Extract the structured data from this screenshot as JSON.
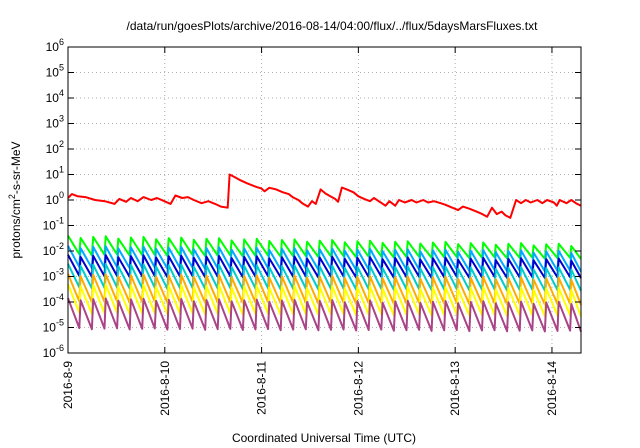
{
  "chart_data": {
    "type": "line",
    "title": "/data/run/goesPlots/archive/2016-08-14/04:00/flux/../flux/5daysMarsFluxes.txt",
    "xlabel": "Coordinated Universal Time (UTC)",
    "ylabel": "protons/cm²-s-sr-MeV",
    "y_scale": "log",
    "ylim": [
      1e-06,
      1000000.0
    ],
    "xlim": [
      0.0,
      5.3
    ],
    "x_units": "days since 2016-8-9 00:00 UTC",
    "x_ticks": [
      {
        "value": 0,
        "label": "2016-8-9"
      },
      {
        "value": 1,
        "label": "2016-8-10"
      },
      {
        "value": 2,
        "label": "2016-8-11"
      },
      {
        "value": 3,
        "label": "2016-8-12"
      },
      {
        "value": 4,
        "label": "2016-8-13"
      },
      {
        "value": 5,
        "label": "2016-8-14"
      }
    ],
    "y_ticks": [
      {
        "exp": -6
      },
      {
        "exp": -5
      },
      {
        "exp": -4
      },
      {
        "exp": -3
      },
      {
        "exp": -2
      },
      {
        "exp": -1
      },
      {
        "exp": 0
      },
      {
        "exp": 1
      },
      {
        "exp": 2
      },
      {
        "exp": 3
      },
      {
        "exp": 4
      },
      {
        "exp": 5
      },
      {
        "exp": 6
      }
    ],
    "tick_base": "10",
    "grid": true,
    "legend": "none",
    "series": [
      {
        "color": "#ff0000",
        "points": [
          [
            0.0,
            1.2
          ],
          [
            0.04,
            1.7
          ],
          [
            0.1,
            1.4
          ],
          [
            0.18,
            1.3
          ],
          [
            0.28,
            1.0
          ],
          [
            0.38,
            0.9
          ],
          [
            0.48,
            0.7
          ],
          [
            0.53,
            1.1
          ],
          [
            0.6,
            0.85
          ],
          [
            0.65,
            1.2
          ],
          [
            0.72,
            0.9
          ],
          [
            0.78,
            1.3
          ],
          [
            0.86,
            1.0
          ],
          [
            0.92,
            1.2
          ],
          [
            0.98,
            0.95
          ],
          [
            1.06,
            0.7
          ],
          [
            1.11,
            1.5
          ],
          [
            1.18,
            1.2
          ],
          [
            1.24,
            1.3
          ],
          [
            1.3,
            1.0
          ],
          [
            1.38,
            0.75
          ],
          [
            1.45,
            0.9
          ],
          [
            1.52,
            0.7
          ],
          [
            1.58,
            0.55
          ],
          [
            1.65,
            0.5
          ],
          [
            1.67,
            10.0
          ],
          [
            1.72,
            8.0
          ],
          [
            1.78,
            6.0
          ],
          [
            1.85,
            4.5
          ],
          [
            1.9,
            3.8
          ],
          [
            1.95,
            3.2
          ],
          [
            2.0,
            2.8
          ],
          [
            2.03,
            2.2
          ],
          [
            2.08,
            3.0
          ],
          [
            2.15,
            2.6
          ],
          [
            2.22,
            2.0
          ],
          [
            2.28,
            1.7
          ],
          [
            2.32,
            1.3
          ],
          [
            2.38,
            1.0
          ],
          [
            2.42,
            0.75
          ],
          [
            2.48,
            0.55
          ],
          [
            2.52,
            0.9
          ],
          [
            2.56,
            0.7
          ],
          [
            2.61,
            2.6
          ],
          [
            2.66,
            1.8
          ],
          [
            2.71,
            1.4
          ],
          [
            2.76,
            1.1
          ],
          [
            2.79,
            0.85
          ],
          [
            2.83,
            3.1
          ],
          [
            2.88,
            2.6
          ],
          [
            2.95,
            2.0
          ],
          [
            3.0,
            1.4
          ],
          [
            3.06,
            1.1
          ],
          [
            3.12,
            0.9
          ],
          [
            3.16,
            1.2
          ],
          [
            3.22,
            0.85
          ],
          [
            3.28,
            0.6
          ],
          [
            3.32,
            0.9
          ],
          [
            3.38,
            0.6
          ],
          [
            3.42,
            1.0
          ],
          [
            3.48,
            0.8
          ],
          [
            3.55,
            1.0
          ],
          [
            3.6,
            0.8
          ],
          [
            3.67,
            1.0
          ],
          [
            3.72,
            0.8
          ],
          [
            3.78,
            0.9
          ],
          [
            3.85,
            0.75
          ],
          [
            3.9,
            0.65
          ],
          [
            3.97,
            0.5
          ],
          [
            4.03,
            0.4
          ],
          [
            4.08,
            0.55
          ],
          [
            4.15,
            0.45
          ],
          [
            4.22,
            0.35
          ],
          [
            4.28,
            0.28
          ],
          [
            4.33,
            0.22
          ],
          [
            4.38,
            0.5
          ],
          [
            4.43,
            0.28
          ],
          [
            4.48,
            0.35
          ],
          [
            4.52,
            0.25
          ],
          [
            4.57,
            0.2
          ],
          [
            4.63,
            1.0
          ],
          [
            4.68,
            0.75
          ],
          [
            4.73,
            1.0
          ],
          [
            4.78,
            0.8
          ],
          [
            4.85,
            1.0
          ],
          [
            4.9,
            0.75
          ],
          [
            4.95,
            1.0
          ],
          [
            5.02,
            0.8
          ],
          [
            5.05,
            0.6
          ],
          [
            5.08,
            1.0
          ],
          [
            5.15,
            0.75
          ],
          [
            5.2,
            1.0
          ],
          [
            5.26,
            0.7
          ],
          [
            5.3,
            0.6
          ]
        ]
      },
      {
        "color": "#00ff00",
        "sawtooth": {
          "period": 0.13,
          "start": 0.0,
          "end": 5.3,
          "peak_exp": [
            -1.45,
            -1.78
          ],
          "trough_exp": [
            -2.15,
            -2.3
          ]
        }
      },
      {
        "color": "#00aaff",
        "sawtooth": {
          "period": 0.13,
          "start": 0.0,
          "end": 5.3,
          "peak_exp": [
            -1.85,
            -2.05
          ],
          "trough_exp": [
            -2.65,
            -2.8
          ]
        }
      },
      {
        "color": "#0000cc",
        "sawtooth": {
          "period": 0.13,
          "start": 0.0,
          "end": 5.3,
          "peak_exp": [
            -2.2,
            -2.35
          ],
          "trough_exp": [
            -3.0,
            -3.05
          ]
        }
      },
      {
        "color": "#00cccc",
        "sawtooth": {
          "period": 0.13,
          "start": 0.0,
          "end": 5.3,
          "peak_exp": [
            -2.55,
            -2.7
          ],
          "trough_exp": [
            -3.45,
            -3.55
          ]
        }
      },
      {
        "color": "#ffaa00",
        "sawtooth": {
          "period": 0.13,
          "start": 0.0,
          "end": 5.3,
          "peak_exp": [
            -2.95,
            -3.1
          ],
          "trough_exp": [
            -4.0,
            -4.1
          ]
        }
      },
      {
        "color": "#ffff00",
        "sawtooth": {
          "period": 0.13,
          "start": 0.0,
          "end": 5.3,
          "peak_exp": [
            -3.35,
            -3.5
          ],
          "trough_exp": [
            -4.45,
            -4.55
          ]
        }
      },
      {
        "color": "#aa4488",
        "sawtooth": {
          "period": 0.13,
          "start": 0.0,
          "end": 5.3,
          "peak_exp": [
            -3.9,
            -4.05
          ],
          "trough_exp": [
            -5.05,
            -5.15
          ]
        }
      }
    ]
  }
}
